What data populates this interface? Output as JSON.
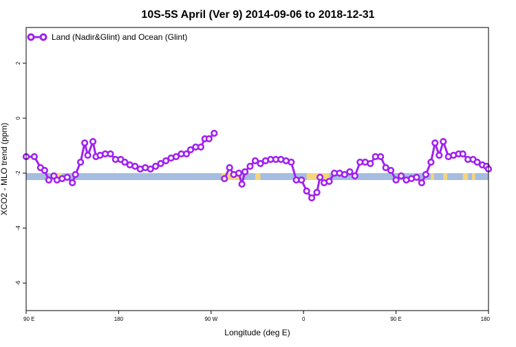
{
  "chart_data": {
    "type": "line",
    "title": "10S-5S April (Ver 9)   2014-09-06 to 2018-12-31",
    "xlabel": "Longitude (deg E)",
    "ylabel": "XCO2 - MLO trend (ppm)",
    "xlim": [
      90,
      540
    ],
    "ylim": [
      -7.0,
      3.3
    ],
    "x_ticks": [
      {
        "value": 90,
        "label": "90 E"
      },
      {
        "value": 180,
        "label": "180"
      },
      {
        "value": 270,
        "label": "90 W"
      },
      {
        "value": 360,
        "label": "0"
      },
      {
        "value": 450,
        "label": "90 E"
      },
      {
        "value": 540,
        "label": "180"
      }
    ],
    "y_ticks": [
      {
        "value": 2,
        "label": "2"
      },
      {
        "value": 0,
        "label": "0"
      },
      {
        "value": -2,
        "label": "-2"
      },
      {
        "value": -4,
        "label": "-4"
      },
      {
        "value": -6,
        "label": "-6"
      }
    ],
    "legend": {
      "position": "top-left",
      "entries": [
        "Land (Nadir&Glint) and Ocean (Glint)"
      ]
    },
    "colors": {
      "line": "#a020f0",
      "ocean_band": "#a4bde0",
      "land_band": "#f5d57a"
    },
    "surface_band": {
      "y_range": [
        -2.25,
        -2.0
      ],
      "land_segments": [
        [
          115,
          125
        ],
        [
          280,
          300
        ],
        [
          313,
          318
        ],
        [
          363,
          385
        ],
        [
          484,
          487
        ],
        [
          496,
          500
        ],
        [
          515,
          520
        ],
        [
          524,
          527
        ]
      ]
    },
    "series": [
      {
        "name": "Land (Nadir&Glint) and Ocean (Glint)",
        "segments": [
          [
            [
              90,
              -1.4
            ],
            [
              98,
              -1.4
            ],
            [
              104,
              -1.8
            ],
            [
              108,
              -1.9
            ],
            [
              112,
              -2.25
            ],
            [
              117,
              -2.1
            ],
            [
              120,
              -2.25
            ],
            [
              125,
              -2.2
            ],
            [
              130,
              -2.15
            ],
            [
              135,
              -2.35
            ],
            [
              138,
              -2.05
            ],
            [
              143,
              -1.6
            ],
            [
              147,
              -0.9
            ],
            [
              150,
              -1.35
            ],
            [
              155,
              -0.85
            ],
            [
              158,
              -1.4
            ],
            [
              162,
              -1.35
            ],
            [
              167,
              -1.3
            ],
            [
              172,
              -1.3
            ],
            [
              177,
              -1.5
            ],
            [
              182,
              -1.5
            ],
            [
              186,
              -1.6
            ],
            [
              191,
              -1.7
            ],
            [
              196,
              -1.75
            ],
            [
              201,
              -1.85
            ],
            [
              206,
              -1.8
            ],
            [
              211,
              -1.85
            ],
            [
              216,
              -1.75
            ],
            [
              221,
              -1.65
            ],
            [
              226,
              -1.55
            ],
            [
              231,
              -1.45
            ],
            [
              236,
              -1.4
            ],
            [
              241,
              -1.3
            ],
            [
              246,
              -1.3
            ],
            [
              250,
              -1.15
            ],
            [
              255,
              -1.05
            ],
            [
              260,
              -1.05
            ],
            [
              264,
              -0.75
            ],
            [
              268,
              -0.75
            ],
            [
              273,
              -0.55
            ]
          ],
          [
            [
              283,
              -2.2
            ],
            [
              288,
              -1.8
            ],
            [
              292,
              -2.05
            ],
            [
              297,
              -2.0
            ],
            [
              300,
              -2.4
            ],
            [
              303,
              -1.95
            ],
            [
              308,
              -1.75
            ],
            [
              313,
              -1.55
            ],
            [
              318,
              -1.65
            ],
            [
              323,
              -1.55
            ],
            [
              328,
              -1.5
            ],
            [
              333,
              -1.5
            ],
            [
              338,
              -1.5
            ],
            [
              343,
              -1.55
            ],
            [
              348,
              -1.6
            ],
            [
              353,
              -2.25
            ],
            [
              358,
              -2.25
            ],
            [
              363,
              -2.65
            ],
            [
              368,
              -2.9
            ],
            [
              373,
              -2.7
            ],
            [
              376,
              -2.15
            ],
            [
              380,
              -2.35
            ],
            [
              385,
              -2.3
            ],
            [
              390,
              -2.0
            ],
            [
              395,
              -2.0
            ],
            [
              400,
              -2.05
            ],
            [
              405,
              -1.95
            ],
            [
              410,
              -2.1
            ],
            [
              415,
              -1.6
            ],
            [
              420,
              -1.6
            ],
            [
              425,
              -1.65
            ],
            [
              430,
              -1.4
            ],
            [
              435,
              -1.4
            ],
            [
              440,
              -1.8
            ],
            [
              445,
              -1.9
            ],
            [
              450,
              -2.25
            ],
            [
              455,
              -2.1
            ],
            [
              460,
              -2.25
            ],
            [
              465,
              -2.2
            ],
            [
              470,
              -2.15
            ],
            [
              475,
              -2.35
            ],
            [
              479,
              -2.05
            ],
            [
              484,
              -1.6
            ],
            [
              488,
              -0.9
            ],
            [
              492,
              -1.35
            ],
            [
              496,
              -0.85
            ],
            [
              501,
              -1.4
            ],
            [
              506,
              -1.35
            ],
            [
              511,
              -1.3
            ],
            [
              515,
              -1.3
            ],
            [
              520,
              -1.5
            ],
            [
              525,
              -1.5
            ],
            [
              529,
              -1.6
            ],
            [
              534,
              -1.7
            ],
            [
              538,
              -1.75
            ],
            [
              540,
              -1.85
            ]
          ]
        ]
      }
    ]
  }
}
